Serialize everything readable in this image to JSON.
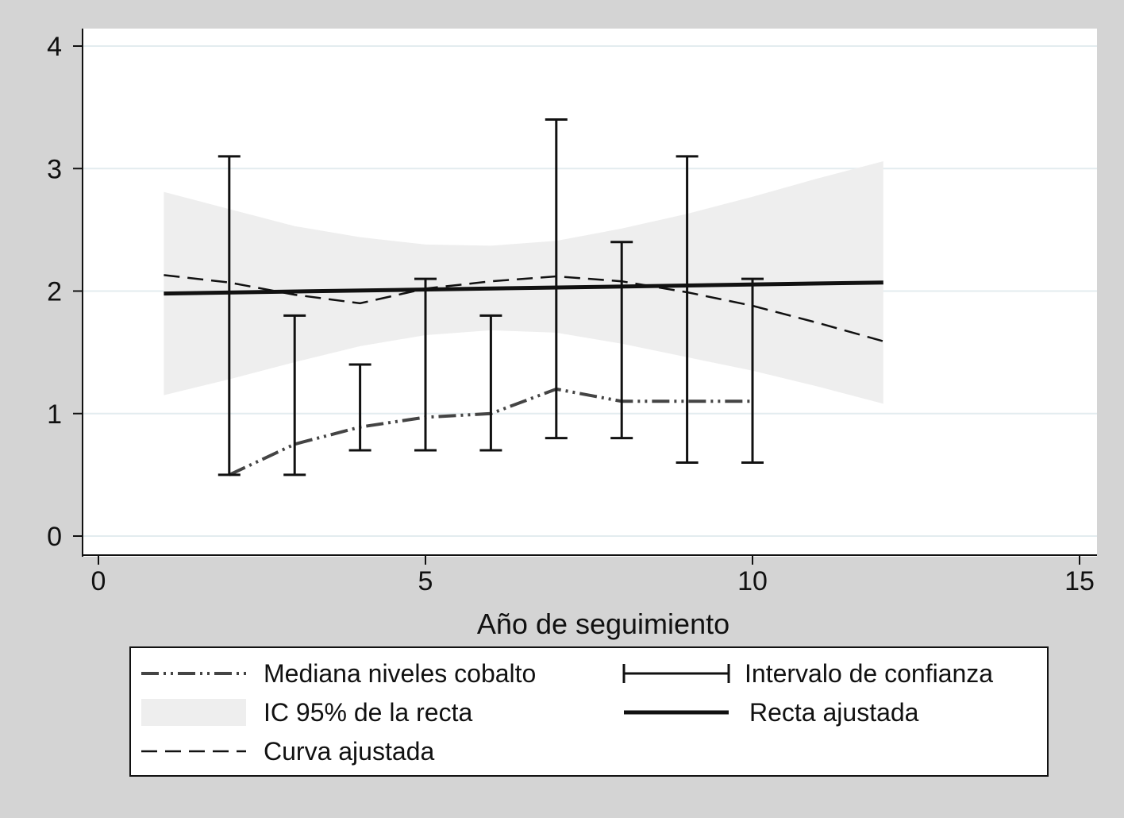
{
  "chart_data": {
    "type": "line",
    "title": "",
    "xlabel": "Año de seguimiento",
    "ylabel": "",
    "xlim": [
      0,
      15
    ],
    "ylim": [
      0,
      4
    ],
    "x_ticks": [
      "0",
      "5",
      "10",
      "15"
    ],
    "y_ticks": [
      "0",
      "1",
      "2",
      "3",
      "4"
    ],
    "grid": "horizontal",
    "colors": {
      "background": "#d4d4d4",
      "plot_area": "#ffffff",
      "grid": "#e3ecef",
      "band": "#eeeeee",
      "lines": "#111111",
      "median": "#444444"
    },
    "series": [
      {
        "name": "Mediana niveles cobalto",
        "style": "dash-dot-dot",
        "x": [
          2,
          3,
          4,
          5,
          6,
          7,
          8,
          9,
          10
        ],
        "y": [
          0.5,
          0.75,
          0.89,
          0.97,
          1.0,
          1.2,
          1.1,
          1.1,
          1.1
        ]
      },
      {
        "name": "Intervalo de confianza",
        "style": "error-bar",
        "x": [
          2,
          3,
          4,
          5,
          6,
          7,
          8,
          9,
          10
        ],
        "low": [
          0.5,
          0.5,
          0.7,
          0.7,
          0.7,
          0.8,
          0.8,
          0.6,
          0.6
        ],
        "high": [
          3.1,
          1.8,
          1.4,
          2.1,
          1.8,
          3.4,
          2.4,
          3.1,
          2.1
        ]
      },
      {
        "name": "IC 95% de la recta",
        "style": "band",
        "x": [
          1,
          2,
          3,
          4,
          5,
          6,
          7,
          8,
          9,
          10,
          11,
          12
        ],
        "lower": [
          1.15,
          1.28,
          1.42,
          1.55,
          1.64,
          1.68,
          1.66,
          1.57,
          1.46,
          1.35,
          1.22,
          1.08
        ],
        "upper": [
          2.81,
          2.67,
          2.53,
          2.44,
          2.38,
          2.37,
          2.41,
          2.51,
          2.63,
          2.77,
          2.92,
          3.06
        ]
      },
      {
        "name": "Recta ajustada",
        "style": "solid-thick",
        "x": [
          1,
          12
        ],
        "y": [
          1.98,
          2.07
        ]
      },
      {
        "name": "Curva ajustada",
        "style": "dashed",
        "x": [
          1,
          2,
          3,
          4,
          5,
          6,
          7,
          8,
          9,
          10,
          11,
          12
        ],
        "y": [
          2.13,
          2.07,
          1.97,
          1.9,
          2.02,
          2.08,
          2.12,
          2.08,
          1.99,
          1.88,
          1.74,
          1.59
        ]
      }
    ],
    "legend": {
      "placement": "bottom",
      "entries": [
        {
          "label": "Mediana niveles cobalto",
          "style": "dash-dot-dot"
        },
        {
          "label": "Intervalo de confianza",
          "style": "error-bar"
        },
        {
          "label": "IC 95% de la recta",
          "style": "band"
        },
        {
          "label": "Recta ajustada",
          "style": "solid-thick"
        },
        {
          "label": "Curva ajustada",
          "style": "dashed"
        }
      ]
    }
  }
}
